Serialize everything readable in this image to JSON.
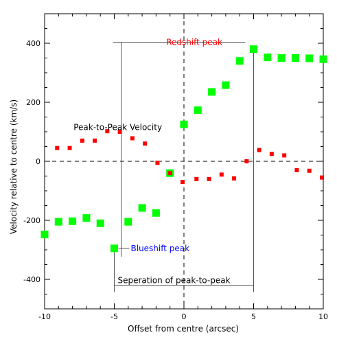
{
  "chart_data": {
    "type": "scatter",
    "xlabel": "Offset from centre (arcsec)",
    "ylabel": "Velocity relative to centre (km/s)",
    "xlim": [
      -10,
      10
    ],
    "ylim": [
      -500,
      500
    ],
    "x_ticks": [
      -10,
      -5,
      0,
      5,
      10
    ],
    "y_ticks": [
      -400,
      -200,
      0,
      200,
      400
    ],
    "grid": false,
    "reference_lines": {
      "x": 0,
      "y": 0,
      "style": "dashed"
    },
    "colors": {
      "series_green": "#00ff00",
      "series_red": "#ff0000",
      "redshift": "#ff0000",
      "blueshift": "#0000ff",
      "annotation": "#000000"
    },
    "series": [
      {
        "marker": "square-large",
        "color": "#00ff00",
        "points": [
          [
            -10,
            -248
          ],
          [
            -9,
            -205
          ],
          [
            -8,
            -203
          ],
          [
            -7,
            -192
          ],
          [
            -6,
            -210
          ],
          [
            -5,
            -295
          ],
          [
            -4,
            -205
          ],
          [
            -3,
            -158
          ],
          [
            -2,
            -175
          ],
          [
            -1,
            -40
          ],
          [
            0,
            125
          ],
          [
            1,
            173
          ],
          [
            2,
            235
          ],
          [
            3,
            258
          ],
          [
            4,
            340
          ],
          [
            5,
            380
          ],
          [
            6,
            352
          ],
          [
            7,
            350
          ],
          [
            8,
            350
          ],
          [
            9,
            349
          ],
          [
            10,
            346
          ]
        ]
      },
      {
        "marker": "square-small",
        "color": "#ff0000",
        "points": [
          [
            -9.1,
            45
          ],
          [
            -8.2,
            45
          ],
          [
            -7.3,
            70
          ],
          [
            -6.4,
            70
          ],
          [
            -5.5,
            102
          ],
          [
            -4.6,
            100
          ],
          [
            -3.7,
            78
          ],
          [
            -2.8,
            60
          ],
          [
            -1.9,
            -5
          ],
          [
            -1.0,
            -40
          ],
          [
            -0.1,
            -70
          ],
          [
            0.9,
            -60
          ],
          [
            1.8,
            -60
          ],
          [
            2.7,
            -45
          ],
          [
            3.6,
            -58
          ],
          [
            4.5,
            0
          ],
          [
            5.4,
            38
          ],
          [
            6.3,
            25
          ],
          [
            7.2,
            20
          ],
          [
            8.1,
            -30
          ],
          [
            9.0,
            -32
          ],
          [
            9.9,
            -55
          ]
        ]
      }
    ],
    "annotations": {
      "redshift_peak": {
        "text": "Redshift peak",
        "x": 5,
        "y": 380
      },
      "blueshift_peak": {
        "text": "Blueshift peak",
        "x": -5,
        "y": -295
      },
      "peak_to_peak_velocity": {
        "text": "Peak-to-Peak Velocity",
        "x": -4.5
      },
      "separation": {
        "text": "Seperation of peak-to-peak",
        "x_from": -5,
        "x_to": 5,
        "y": -420
      }
    }
  }
}
